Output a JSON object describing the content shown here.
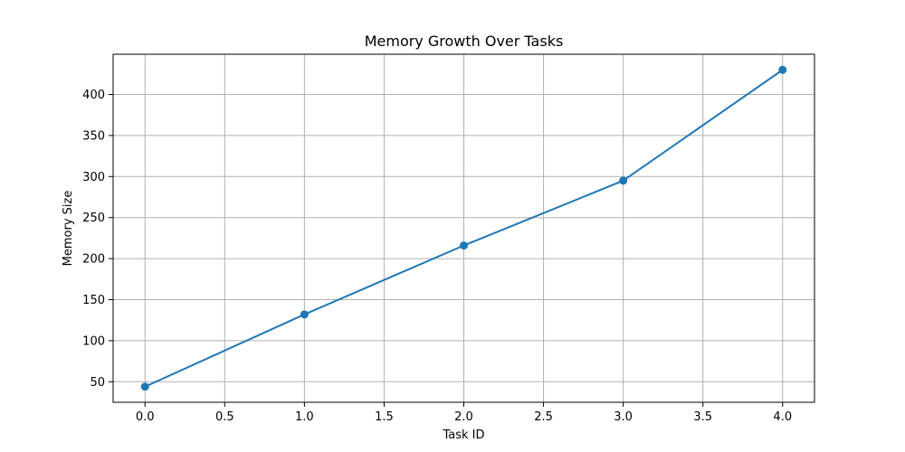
{
  "chart_data": {
    "type": "line",
    "title": "Memory Growth Over Tasks",
    "xlabel": "Task ID",
    "ylabel": "Memory Size",
    "x": [
      0,
      1,
      2,
      3,
      4
    ],
    "series": [
      {
        "values": [
          44,
          132,
          216,
          295,
          430
        ],
        "color": "#1f77b4",
        "marker": "circle"
      }
    ],
    "xlim": [
      -0.2,
      4.2
    ],
    "ylim": [
      25,
      449
    ],
    "xticks": [
      0.0,
      0.5,
      1.0,
      1.5,
      2.0,
      2.5,
      3.0,
      3.5,
      4.0
    ],
    "xtick_labels": [
      "0.0",
      "0.5",
      "1.0",
      "1.5",
      "2.0",
      "2.5",
      "3.0",
      "3.5",
      "4.0"
    ],
    "yticks": [
      50,
      100,
      150,
      200,
      250,
      300,
      350,
      400
    ],
    "ytick_labels": [
      "50",
      "100",
      "150",
      "200",
      "250",
      "300",
      "350",
      "400"
    ],
    "grid": true,
    "legend": "none"
  }
}
